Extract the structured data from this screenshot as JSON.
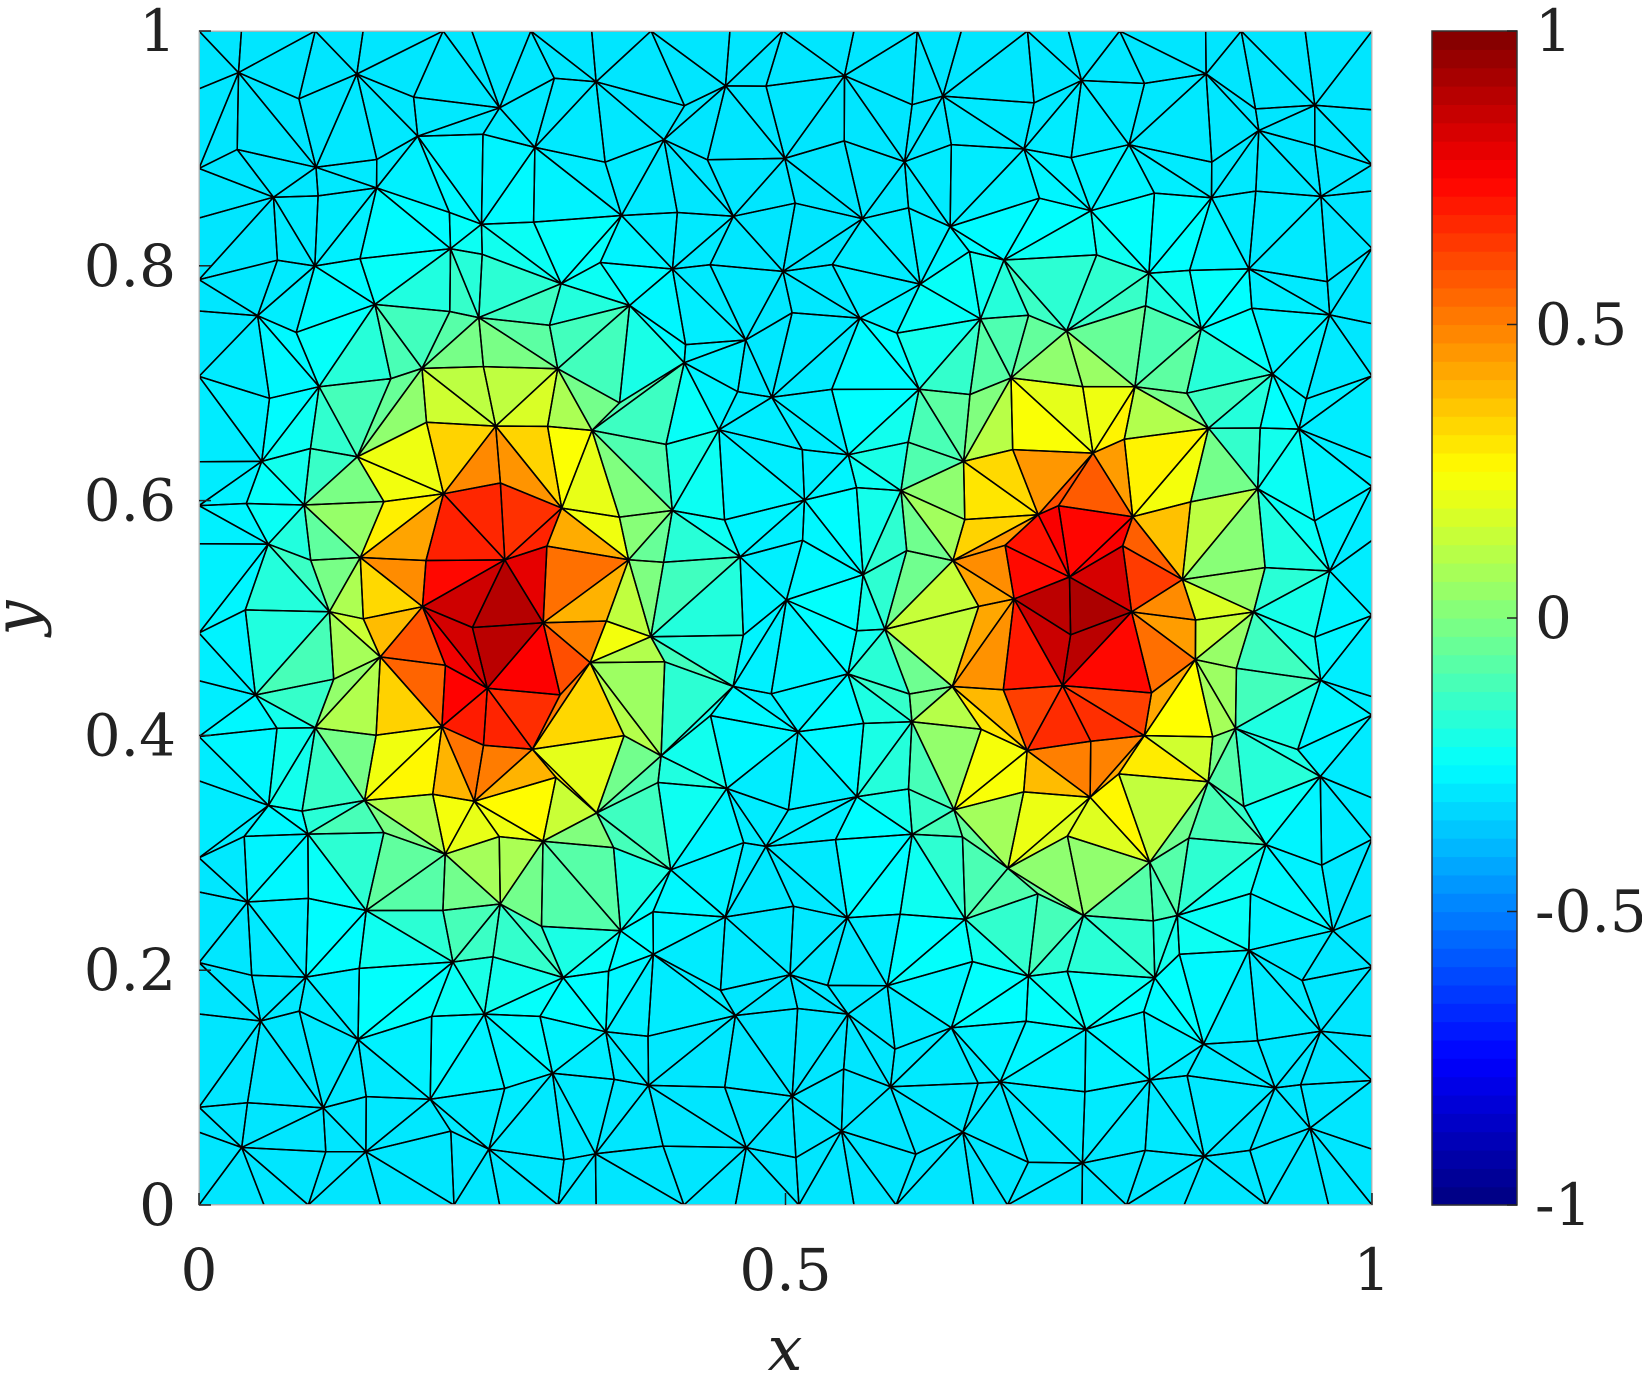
{
  "chart_data": {
    "type": "heatmap",
    "description_shape": "filled triangular mesh (trisurf) of a scalar field u(x,y) on the unit square",
    "xlabel": "x",
    "ylabel": "y",
    "xlim": [
      0,
      1
    ],
    "ylim": [
      0,
      1
    ],
    "xticks": [
      0,
      0.5,
      1
    ],
    "xtick_labels": [
      "0",
      "0.5",
      "1"
    ],
    "yticks": [
      0,
      0.2,
      0.4,
      0.6,
      0.8,
      1
    ],
    "ytick_labels": [
      "0",
      "0.2",
      "0.4",
      "0.6",
      "0.8",
      "1"
    ],
    "colorbar": {
      "colormap": "jet",
      "clim": [
        -1,
        1
      ],
      "ticks": [
        -1,
        -0.5,
        0,
        0.5,
        1
      ],
      "tick_labels": [
        "-1",
        "-0.5",
        "0",
        "0.5",
        "1"
      ],
      "placement": "right"
    },
    "field_peaks": [
      {
        "x": 0.25,
        "y": 0.5,
        "value": 1.0
      },
      {
        "x": 0.75,
        "y": 0.5,
        "value": 1.0
      }
    ],
    "background_value": -0.3,
    "mesh": {
      "type": "unstructured triangular",
      "approx_nodes_per_side": 20
    },
    "grid": false
  }
}
